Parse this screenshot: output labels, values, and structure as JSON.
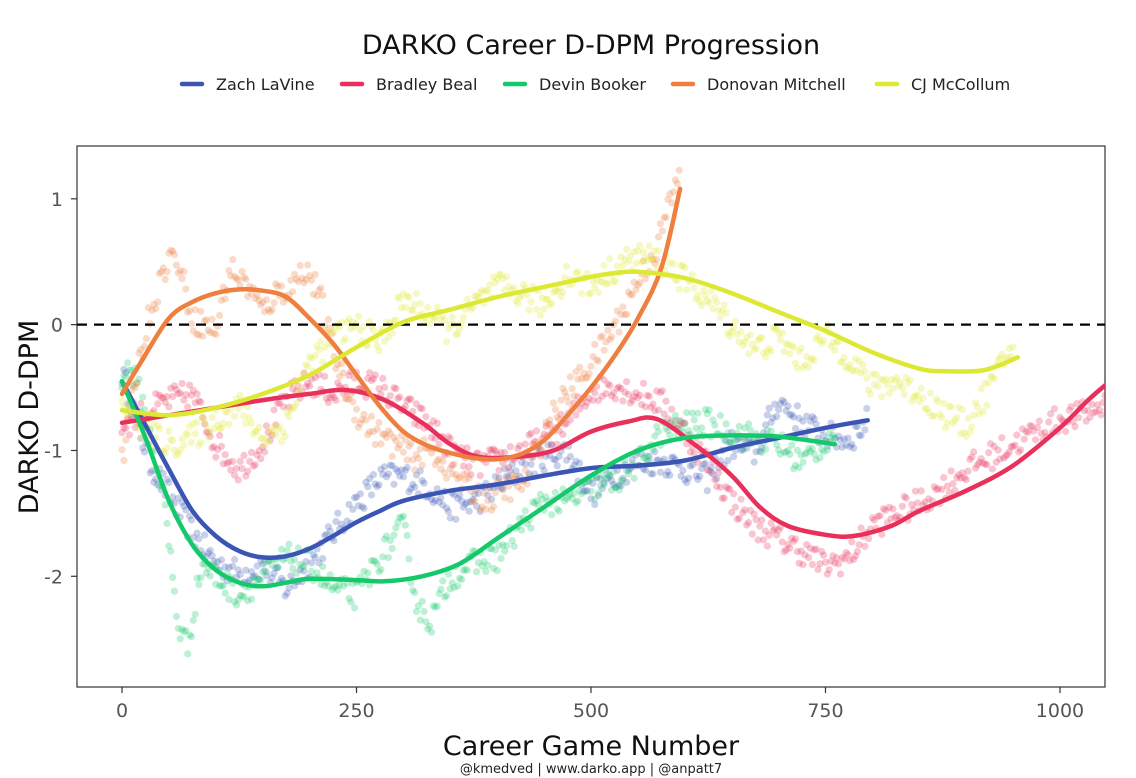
{
  "chart_data": {
    "type": "scatter",
    "title": "DARKO Career D-DPM Progression",
    "xlabel": "Career Game Number",
    "ylabel": "DARKO D-DPM",
    "caption": "@kmedved | www.darko.app | @anpatt7",
    "xlim": [
      -48,
      1048
    ],
    "ylim": [
      -2.88,
      1.42
    ],
    "x_ticks": [
      0,
      250,
      500,
      750,
      1000
    ],
    "x_tick_labels": [
      "0",
      "250",
      "500",
      "750",
      "1000"
    ],
    "y_ticks": [
      -2,
      -1,
      0,
      1
    ],
    "y_tick_labels": [
      "-2",
      "-1",
      "0",
      "1"
    ],
    "reference_line": {
      "y": 0,
      "style": "dashed"
    },
    "legend_position": "top",
    "grid": false,
    "series": [
      {
        "name": "Zach LaVine",
        "color": "#3a55b4",
        "n_games": 800,
        "trend": [
          [
            0,
            -0.45
          ],
          [
            25,
            -0.8
          ],
          [
            50,
            -1.15
          ],
          [
            75,
            -1.48
          ],
          [
            100,
            -1.68
          ],
          [
            125,
            -1.8
          ],
          [
            150,
            -1.85
          ],
          [
            175,
            -1.84
          ],
          [
            200,
            -1.78
          ],
          [
            225,
            -1.68
          ],
          [
            250,
            -1.57
          ],
          [
            275,
            -1.48
          ],
          [
            300,
            -1.4
          ],
          [
            350,
            -1.32
          ],
          [
            400,
            -1.27
          ],
          [
            450,
            -1.2
          ],
          [
            500,
            -1.14
          ],
          [
            550,
            -1.12
          ],
          [
            600,
            -1.08
          ],
          [
            650,
            -0.98
          ],
          [
            700,
            -0.9
          ],
          [
            750,
            -0.82
          ],
          [
            795,
            -0.76
          ]
        ],
        "points": [
          [
            0,
            -0.38
          ],
          [
            15,
            -0.75
          ],
          [
            30,
            -1.1
          ],
          [
            50,
            -1.35
          ],
          [
            75,
            -1.65
          ],
          [
            100,
            -1.9
          ],
          [
            125,
            -1.98
          ],
          [
            150,
            -1.92
          ],
          [
            175,
            -2.1
          ],
          [
            200,
            -1.9
          ],
          [
            225,
            -1.65
          ],
          [
            250,
            -1.42
          ],
          [
            275,
            -1.22
          ],
          [
            300,
            -1.2
          ],
          [
            325,
            -1.28
          ],
          [
            350,
            -1.45
          ],
          [
            375,
            -1.42
          ],
          [
            400,
            -1.28
          ],
          [
            425,
            -1.15
          ],
          [
            450,
            -1.05
          ],
          [
            475,
            -1.0
          ],
          [
            500,
            -1.35
          ],
          [
            525,
            -1.2
          ],
          [
            550,
            -1.1
          ],
          [
            575,
            -1.08
          ],
          [
            600,
            -1.15
          ],
          [
            625,
            -1.22
          ],
          [
            650,
            -0.95
          ],
          [
            675,
            -1.02
          ],
          [
            700,
            -0.6
          ],
          [
            725,
            -0.78
          ],
          [
            750,
            -0.88
          ],
          [
            775,
            -0.92
          ],
          [
            795,
            -0.76
          ]
        ]
      },
      {
        "name": "Bradley Beal",
        "color": "#e8305a",
        "n_games": 1000,
        "trend": [
          [
            0,
            -0.78
          ],
          [
            50,
            -0.72
          ],
          [
            100,
            -0.66
          ],
          [
            150,
            -0.6
          ],
          [
            200,
            -0.55
          ],
          [
            240,
            -0.52
          ],
          [
            280,
            -0.6
          ],
          [
            320,
            -0.78
          ],
          [
            350,
            -0.95
          ],
          [
            380,
            -1.05
          ],
          [
            420,
            -1.05
          ],
          [
            460,
            -1.0
          ],
          [
            500,
            -0.85
          ],
          [
            540,
            -0.77
          ],
          [
            570,
            -0.75
          ],
          [
            610,
            -0.95
          ],
          [
            650,
            -1.2
          ],
          [
            680,
            -1.45
          ],
          [
            710,
            -1.6
          ],
          [
            750,
            -1.67
          ],
          [
            780,
            -1.68
          ],
          [
            820,
            -1.6
          ],
          [
            850,
            -1.48
          ],
          [
            900,
            -1.32
          ],
          [
            950,
            -1.12
          ],
          [
            1000,
            -0.82
          ],
          [
            1030,
            -0.6
          ],
          [
            1050,
            -0.47
          ]
        ],
        "points": [
          [
            0,
            -0.8
          ],
          [
            25,
            -0.7
          ],
          [
            50,
            -0.6
          ],
          [
            75,
            -0.55
          ],
          [
            100,
            -0.95
          ],
          [
            125,
            -1.15
          ],
          [
            150,
            -0.95
          ],
          [
            175,
            -0.6
          ],
          [
            200,
            -0.45
          ],
          [
            225,
            -0.55
          ],
          [
            250,
            -0.45
          ],
          [
            275,
            -0.5
          ],
          [
            300,
            -0.65
          ],
          [
            325,
            -0.78
          ],
          [
            350,
            -1.0
          ],
          [
            375,
            -1.12
          ],
          [
            400,
            -1.08
          ],
          [
            425,
            -1.0
          ],
          [
            450,
            -0.92
          ],
          [
            475,
            -0.78
          ],
          [
            500,
            -0.52
          ],
          [
            525,
            -0.48
          ],
          [
            550,
            -0.55
          ],
          [
            575,
            -0.62
          ],
          [
            600,
            -0.85
          ],
          [
            625,
            -1.1
          ],
          [
            650,
            -1.4
          ],
          [
            675,
            -1.6
          ],
          [
            700,
            -1.7
          ],
          [
            725,
            -1.8
          ],
          [
            750,
            -1.92
          ],
          [
            775,
            -1.85
          ],
          [
            800,
            -1.6
          ],
          [
            825,
            -1.5
          ],
          [
            850,
            -1.42
          ],
          [
            875,
            -1.3
          ],
          [
            900,
            -1.15
          ],
          [
            925,
            -1.05
          ],
          [
            950,
            -0.95
          ],
          [
            975,
            -0.85
          ],
          [
            1000,
            -0.75
          ],
          [
            1025,
            -0.72
          ],
          [
            1050,
            -0.62
          ]
        ]
      },
      {
        "name": "Devin Booker",
        "color": "#14c96a",
        "n_games": 760,
        "trend": [
          [
            0,
            -0.45
          ],
          [
            25,
            -0.9
          ],
          [
            50,
            -1.4
          ],
          [
            75,
            -1.75
          ],
          [
            100,
            -1.95
          ],
          [
            125,
            -2.05
          ],
          [
            150,
            -2.08
          ],
          [
            175,
            -2.05
          ],
          [
            200,
            -2.02
          ],
          [
            250,
            -2.03
          ],
          [
            280,
            -2.04
          ],
          [
            320,
            -2.0
          ],
          [
            360,
            -1.9
          ],
          [
            400,
            -1.7
          ],
          [
            450,
            -1.45
          ],
          [
            500,
            -1.2
          ],
          [
            550,
            -1.0
          ],
          [
            600,
            -0.9
          ],
          [
            650,
            -0.88
          ],
          [
            700,
            -0.89
          ],
          [
            760,
            -0.95
          ]
        ],
        "points": [
          [
            0,
            -0.4
          ],
          [
            10,
            -0.35
          ],
          [
            25,
            -0.7
          ],
          [
            45,
            -1.4
          ],
          [
            60,
            -2.4
          ],
          [
            70,
            -2.55
          ],
          [
            85,
            -1.9
          ],
          [
            100,
            -2.0
          ],
          [
            125,
            -2.15
          ],
          [
            150,
            -2.0
          ],
          [
            175,
            -1.85
          ],
          [
            200,
            -1.9
          ],
          [
            225,
            -2.1
          ],
          [
            250,
            -2.15
          ],
          [
            275,
            -1.85
          ],
          [
            300,
            -1.6
          ],
          [
            315,
            -2.25
          ],
          [
            330,
            -2.35
          ],
          [
            350,
            -2.0
          ],
          [
            375,
            -1.9
          ],
          [
            400,
            -1.85
          ],
          [
            425,
            -1.6
          ],
          [
            450,
            -1.4
          ],
          [
            475,
            -1.42
          ],
          [
            500,
            -1.3
          ],
          [
            525,
            -1.25
          ],
          [
            550,
            -1.1
          ],
          [
            575,
            -0.85
          ],
          [
            600,
            -0.8
          ],
          [
            625,
            -0.78
          ],
          [
            650,
            -0.85
          ],
          [
            675,
            -0.9
          ],
          [
            700,
            -0.95
          ],
          [
            725,
            -1.1
          ],
          [
            750,
            -0.92
          ],
          [
            760,
            -0.85
          ]
        ]
      },
      {
        "name": "Donovan Mitchell",
        "color": "#ee7f3e",
        "n_games": 600,
        "trend": [
          [
            0,
            -0.55
          ],
          [
            20,
            -0.3
          ],
          [
            50,
            0.05
          ],
          [
            75,
            0.18
          ],
          [
            100,
            0.25
          ],
          [
            125,
            0.28
          ],
          [
            150,
            0.27
          ],
          [
            175,
            0.22
          ],
          [
            200,
            0.05
          ],
          [
            225,
            -0.15
          ],
          [
            250,
            -0.4
          ],
          [
            275,
            -0.65
          ],
          [
            300,
            -0.85
          ],
          [
            325,
            -0.96
          ],
          [
            350,
            -1.02
          ],
          [
            375,
            -1.06
          ],
          [
            400,
            -1.07
          ],
          [
            425,
            -1.03
          ],
          [
            450,
            -0.92
          ],
          [
            475,
            -0.72
          ],
          [
            500,
            -0.5
          ],
          [
            525,
            -0.25
          ],
          [
            550,
            0.05
          ],
          [
            575,
            0.45
          ],
          [
            595,
            1.08
          ]
        ],
        "points": [
          [
            0,
            -1.1
          ],
          [
            15,
            -0.4
          ],
          [
            30,
            0.1
          ],
          [
            50,
            0.55
          ],
          [
            60,
            0.5
          ],
          [
            75,
            0.05
          ],
          [
            100,
            -0.05
          ],
          [
            115,
            0.45
          ],
          [
            135,
            0.3
          ],
          [
            150,
            0.1
          ],
          [
            165,
            0.25
          ],
          [
            180,
            0.3
          ],
          [
            195,
            0.45
          ],
          [
            210,
            0.25
          ],
          [
            225,
            -0.2
          ],
          [
            240,
            -0.55
          ],
          [
            255,
            -0.75
          ],
          [
            270,
            -0.85
          ],
          [
            290,
            -0.95
          ],
          [
            310,
            -1.05
          ],
          [
            330,
            -1.0
          ],
          [
            350,
            -1.15
          ],
          [
            370,
            -1.3
          ],
          [
            390,
            -1.4
          ],
          [
            410,
            -1.3
          ],
          [
            430,
            -1.25
          ],
          [
            450,
            -0.85
          ],
          [
            470,
            -0.6
          ],
          [
            490,
            -0.4
          ],
          [
            510,
            -0.2
          ],
          [
            530,
            0.05
          ],
          [
            550,
            0.35
          ],
          [
            570,
            0.6
          ],
          [
            585,
            1.0
          ],
          [
            595,
            1.18
          ]
        ]
      },
      {
        "name": "CJ McCollum",
        "color": "#dde833",
        "n_games": 955,
        "trend": [
          [
            0,
            -0.68
          ],
          [
            50,
            -0.72
          ],
          [
            100,
            -0.66
          ],
          [
            150,
            -0.55
          ],
          [
            200,
            -0.4
          ],
          [
            250,
            -0.18
          ],
          [
            300,
            0.02
          ],
          [
            350,
            0.12
          ],
          [
            400,
            0.22
          ],
          [
            450,
            0.3
          ],
          [
            500,
            0.38
          ],
          [
            525,
            0.41
          ],
          [
            550,
            0.42
          ],
          [
            600,
            0.37
          ],
          [
            650,
            0.25
          ],
          [
            700,
            0.1
          ],
          [
            750,
            -0.05
          ],
          [
            800,
            -0.22
          ],
          [
            850,
            -0.35
          ],
          [
            880,
            -0.37
          ],
          [
            920,
            -0.36
          ],
          [
            955,
            -0.26
          ]
        ],
        "points": [
          [
            0,
            -0.6
          ],
          [
            25,
            -0.85
          ],
          [
            50,
            -0.95
          ],
          [
            75,
            -0.9
          ],
          [
            100,
            -0.75
          ],
          [
            125,
            -0.65
          ],
          [
            150,
            -0.9
          ],
          [
            175,
            -0.8
          ],
          [
            200,
            -0.3
          ],
          [
            225,
            -0.1
          ],
          [
            250,
            0.0
          ],
          [
            275,
            -0.15
          ],
          [
            300,
            0.2
          ],
          [
            325,
            0.1
          ],
          [
            350,
            -0.05
          ],
          [
            375,
            0.15
          ],
          [
            400,
            0.3
          ],
          [
            425,
            0.25
          ],
          [
            450,
            0.15
          ],
          [
            475,
            0.4
          ],
          [
            500,
            0.3
          ],
          [
            525,
            0.45
          ],
          [
            550,
            0.55
          ],
          [
            575,
            0.5
          ],
          [
            600,
            0.35
          ],
          [
            625,
            0.2
          ],
          [
            650,
            0.0
          ],
          [
            675,
            -0.2
          ],
          [
            700,
            -0.1
          ],
          [
            725,
            -0.3
          ],
          [
            750,
            -0.1
          ],
          [
            775,
            -0.25
          ],
          [
            800,
            -0.5
          ],
          [
            825,
            -0.45
          ],
          [
            850,
            -0.55
          ],
          [
            875,
            -0.7
          ],
          [
            900,
            -0.8
          ],
          [
            925,
            -0.5
          ],
          [
            950,
            -0.15
          ]
        ]
      }
    ]
  }
}
